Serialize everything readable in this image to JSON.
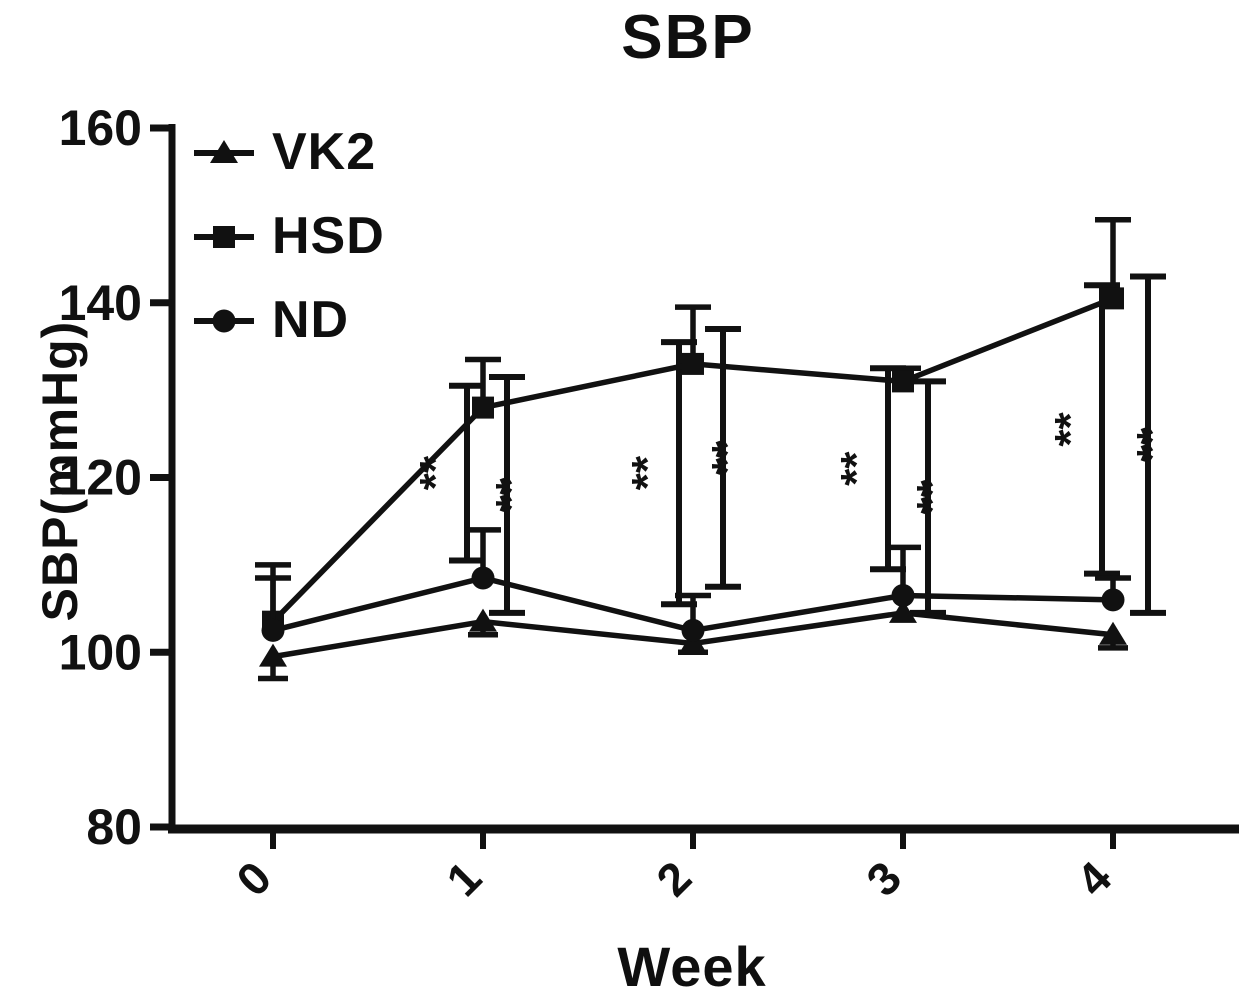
{
  "figure": {
    "background": "#ffffff",
    "ink_color": "#111111"
  },
  "chart_data": {
    "type": "line",
    "title": "SBP",
    "xlabel": "Week",
    "ylabel": "SBP(mmHg)",
    "x": [
      0,
      1,
      2,
      3,
      4
    ],
    "xtick_labels": [
      "0",
      "1",
      "2",
      "3",
      "4"
    ],
    "ylim": [
      80,
      160
    ],
    "yticks": [
      80,
      100,
      120,
      140,
      160
    ],
    "grid": false,
    "legend_position": "top-left",
    "legend_order": [
      "VK2",
      "HSD",
      "ND"
    ],
    "series": [
      {
        "name": "VK2",
        "marker": "triangle",
        "values": [
          99.5,
          103.5,
          101,
          104.5,
          102
        ],
        "err_up": [
          0,
          0,
          0,
          0,
          0
        ],
        "err_down": [
          2.5,
          1.5,
          1,
          0,
          1.5
        ]
      },
      {
        "name": "HSD",
        "marker": "square",
        "values": [
          103.5,
          128,
          133,
          131,
          140.5
        ],
        "err_up": [
          6.5,
          5.5,
          6.5,
          1.5,
          9
        ],
        "err_down": [
          0,
          0,
          0,
          0,
          0
        ]
      },
      {
        "name": "ND",
        "marker": "circle",
        "values": [
          102.5,
          108.5,
          102.5,
          106.5,
          106
        ],
        "err_up": [
          6,
          5.5,
          4,
          5.5,
          2.5
        ],
        "err_down": [
          0,
          0,
          0,
          0,
          0
        ]
      }
    ],
    "significance_brackets": [
      {
        "week": 1,
        "label": "**",
        "dx": -16,
        "top": 130.5,
        "bottom": 110.5,
        "label_side": "left"
      },
      {
        "week": 1,
        "label": "**",
        "dx": 24,
        "top": 131.5,
        "bottom": 104.5,
        "label_side": "right"
      },
      {
        "week": 2,
        "label": "**",
        "dx": -14,
        "top": 135.5,
        "bottom": 105.5,
        "label_side": "left"
      },
      {
        "week": 2,
        "label": "**",
        "dx": 30,
        "top": 137,
        "bottom": 107.5,
        "label_side": "right"
      },
      {
        "week": 3,
        "label": "**",
        "dx": -15,
        "top": 132.5,
        "bottom": 109.5,
        "label_side": "left"
      },
      {
        "week": 3,
        "label": "**",
        "dx": 25,
        "top": 131,
        "bottom": 104.5,
        "label_side": "right"
      },
      {
        "week": 4,
        "label": "**",
        "dx": -11,
        "top": 142,
        "bottom": 109,
        "label_side": "left"
      },
      {
        "week": 4,
        "label": "**",
        "dx": 35,
        "top": 143,
        "bottom": 104.5,
        "label_side": "right"
      }
    ]
  }
}
